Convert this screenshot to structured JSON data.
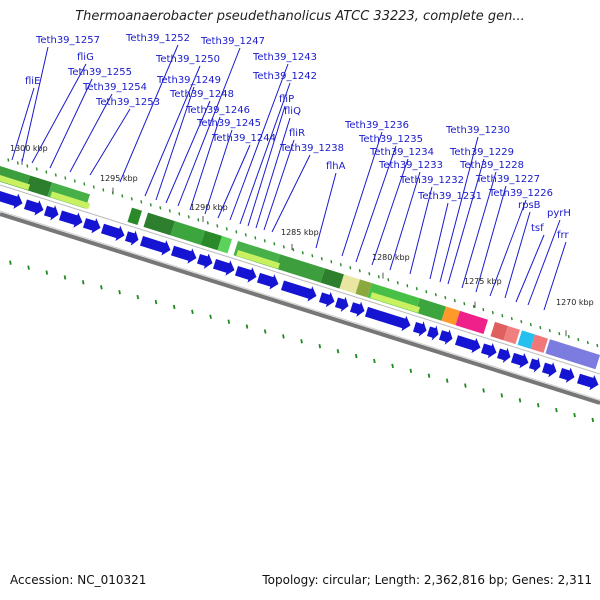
{
  "title": "Thermoanaerobacter pseudethanolicus ATCC 33223, complete gen...",
  "footer": {
    "accession": "Accession: NC_010321",
    "summary": "Topology: circular; Length: 2,362,816 bp; Genes: 2,311"
  },
  "colors": {
    "label": "#1a1acc",
    "arrow": "#1414d2",
    "backbone": "#777777",
    "gc_tick": "#1f8a1f"
  },
  "scale_labels": [
    "1300 kbp",
    "1295 kbp",
    "1290 kbp",
    "1285 kbp",
    "1280 kbp",
    "1275 kbp",
    "1270 kbp"
  ],
  "gene_labels": [
    "fliE",
    "Teth39_1257",
    "fliG",
    "Teth39_1255",
    "Teth39_1254",
    "Teth39_1253",
    "Teth39_1252",
    "Teth39_1250",
    "Teth39_1249",
    "Teth39_1248",
    "Teth39_1247",
    "Teth39_1246",
    "Teth39_1245",
    "Teth39_1244",
    "Teth39_1243",
    "Teth39_1242",
    "fliP",
    "fliQ",
    "fliR",
    "Teth39_1238",
    "flhA",
    "Teth39_1236",
    "Teth39_1235",
    "Teth39_1234",
    "Teth39_1233",
    "Teth39_1232",
    "Teth39_1231",
    "Teth39_1230",
    "Teth39_1229",
    "Teth39_1228",
    "Teth39_1227",
    "Teth39_1226",
    "rpsB",
    "tsf",
    "pyrH",
    "frr"
  ]
}
